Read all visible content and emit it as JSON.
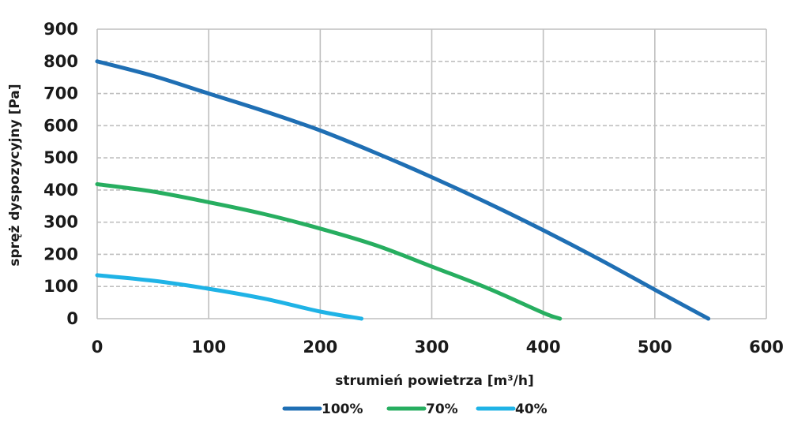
{
  "chart_data": {
    "type": "line",
    "xlabel": "strumień powietrza [m³/h]",
    "ylabel": "spręż dyspozycyjny [Pa]",
    "xlim": [
      0,
      600
    ],
    "ylim": [
      0,
      900
    ],
    "xticks": [
      0,
      100,
      200,
      300,
      400,
      500,
      600
    ],
    "yticks": [
      0,
      100,
      200,
      300,
      400,
      500,
      600,
      700,
      800,
      900
    ],
    "grid": true,
    "legend_position": "bottom",
    "series": [
      {
        "name": "100%",
        "color": "#1f6fb4",
        "x": [
          0,
          50,
          100,
          150,
          200,
          250,
          300,
          350,
          400,
          450,
          500,
          548
        ],
        "y": [
          800,
          755,
          700,
          645,
          585,
          515,
          440,
          360,
          275,
          185,
          90,
          0
        ]
      },
      {
        "name": "70%",
        "color": "#27ae60",
        "x": [
          0,
          50,
          100,
          150,
          200,
          250,
          300,
          350,
          400,
          415
        ],
        "y": [
          418,
          395,
          362,
          325,
          280,
          228,
          162,
          95,
          18,
          0
        ]
      },
      {
        "name": "40%",
        "color": "#1fb3e6",
        "x": [
          0,
          50,
          100,
          150,
          200,
          237
        ],
        "y": [
          135,
          118,
          93,
          62,
          22,
          0
        ]
      }
    ]
  }
}
